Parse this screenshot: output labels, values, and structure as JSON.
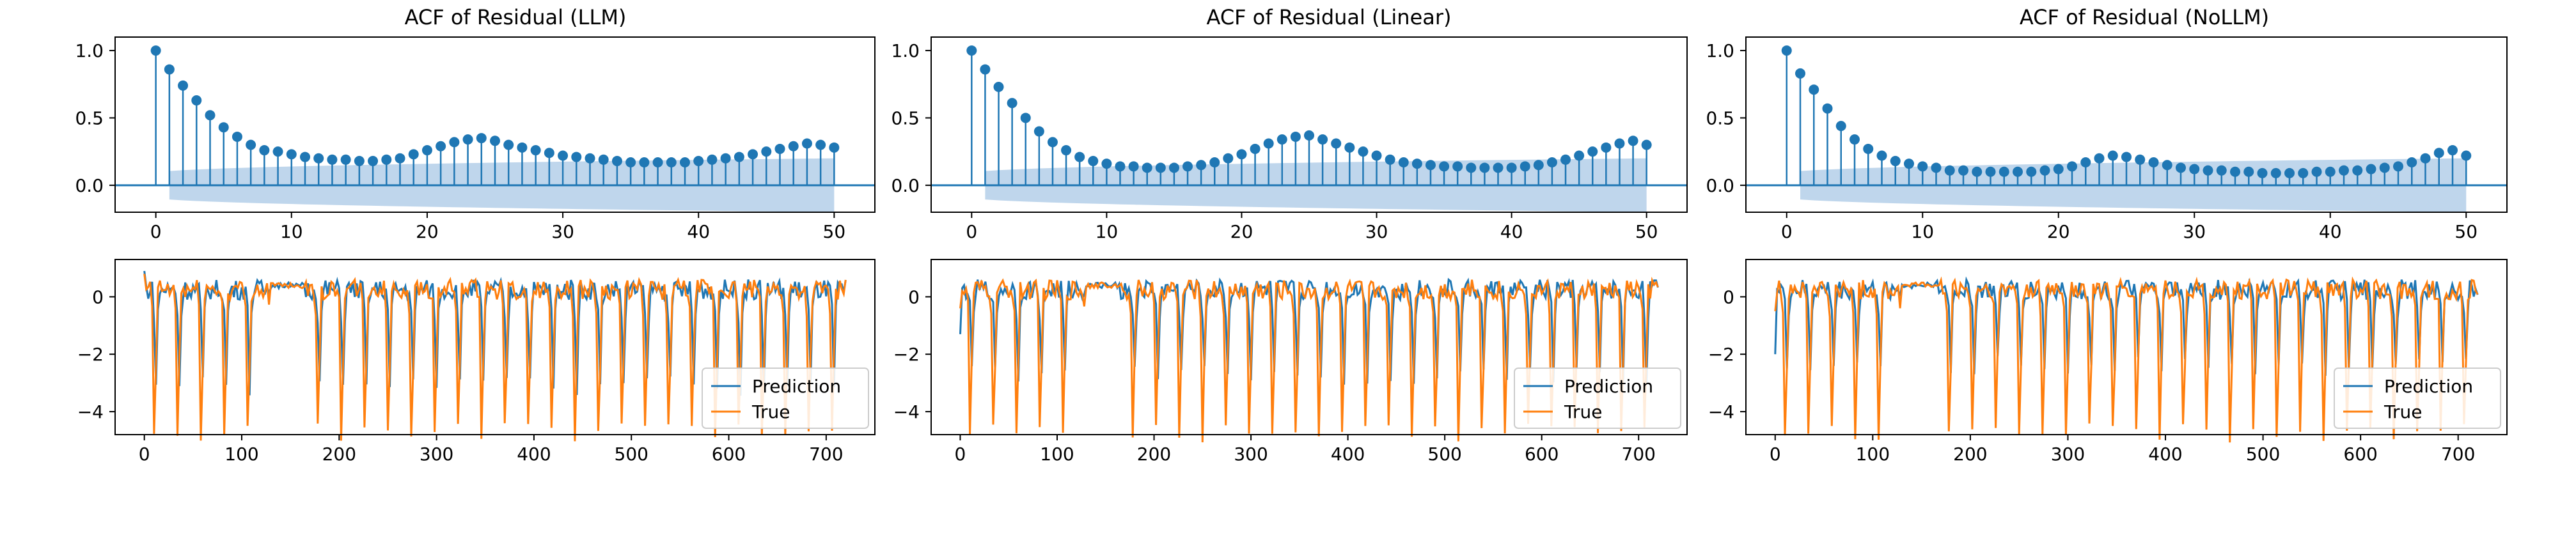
{
  "colors": {
    "acf": "#1f77b4",
    "band": "#a9c8e6",
    "prediction": "#1f77b4",
    "true": "#ff7f0e",
    "axis": "#000000"
  },
  "chart_data": [
    {
      "type": "stem",
      "title": "ACF of Residual (LLM)",
      "xlim": [
        -3,
        53
      ],
      "ylim": [
        -0.2,
        1.1
      ],
      "xticks": [
        0,
        10,
        20,
        30,
        40,
        50
      ],
      "yticks": [
        0.0,
        0.5,
        1.0
      ],
      "ytick_labels": [
        "0.0",
        "0.5",
        "1.0"
      ],
      "confidence_band": true,
      "lags": [
        0,
        1,
        2,
        3,
        4,
        5,
        6,
        7,
        8,
        9,
        10,
        11,
        12,
        13,
        14,
        15,
        16,
        17,
        18,
        19,
        20,
        21,
        22,
        23,
        24,
        25,
        26,
        27,
        28,
        29,
        30,
        31,
        32,
        33,
        34,
        35,
        36,
        37,
        38,
        39,
        40,
        41,
        42,
        43,
        44,
        45,
        46,
        47,
        48,
        49,
        50
      ],
      "values": [
        1.0,
        0.86,
        0.74,
        0.63,
        0.52,
        0.43,
        0.36,
        0.3,
        0.26,
        0.25,
        0.23,
        0.21,
        0.2,
        0.19,
        0.19,
        0.18,
        0.18,
        0.19,
        0.2,
        0.23,
        0.26,
        0.29,
        0.32,
        0.34,
        0.35,
        0.33,
        0.3,
        0.28,
        0.26,
        0.24,
        0.22,
        0.21,
        0.2,
        0.19,
        0.18,
        0.17,
        0.17,
        0.17,
        0.17,
        0.17,
        0.18,
        0.19,
        0.2,
        0.21,
        0.23,
        0.25,
        0.27,
        0.29,
        0.31,
        0.3,
        0.28
      ]
    },
    {
      "type": "stem",
      "title": "ACF of Residual (Linear)",
      "xlim": [
        -3,
        53
      ],
      "ylim": [
        -0.2,
        1.1
      ],
      "xticks": [
        0,
        10,
        20,
        30,
        40,
        50
      ],
      "yticks": [
        0.0,
        0.5,
        1.0
      ],
      "ytick_labels": [
        "0.0",
        "0.5",
        "1.0"
      ],
      "confidence_band": true,
      "lags": [
        0,
        1,
        2,
        3,
        4,
        5,
        6,
        7,
        8,
        9,
        10,
        11,
        12,
        13,
        14,
        15,
        16,
        17,
        18,
        19,
        20,
        21,
        22,
        23,
        24,
        25,
        26,
        27,
        28,
        29,
        30,
        31,
        32,
        33,
        34,
        35,
        36,
        37,
        38,
        39,
        40,
        41,
        42,
        43,
        44,
        45,
        46,
        47,
        48,
        49,
        50
      ],
      "values": [
        1.0,
        0.86,
        0.73,
        0.61,
        0.5,
        0.4,
        0.32,
        0.26,
        0.21,
        0.18,
        0.16,
        0.14,
        0.14,
        0.13,
        0.13,
        0.13,
        0.14,
        0.15,
        0.17,
        0.2,
        0.23,
        0.27,
        0.31,
        0.34,
        0.36,
        0.37,
        0.34,
        0.31,
        0.28,
        0.25,
        0.22,
        0.19,
        0.17,
        0.16,
        0.15,
        0.14,
        0.14,
        0.13,
        0.13,
        0.13,
        0.13,
        0.14,
        0.15,
        0.17,
        0.19,
        0.22,
        0.25,
        0.28,
        0.31,
        0.33,
        0.3
      ]
    },
    {
      "type": "stem",
      "title": "ACF of Residual (NoLLM)",
      "xlim": [
        -3,
        53
      ],
      "ylim": [
        -0.2,
        1.1
      ],
      "xticks": [
        0,
        10,
        20,
        30,
        40,
        50
      ],
      "yticks": [
        0.0,
        0.5,
        1.0
      ],
      "ytick_labels": [
        "0.0",
        "0.5",
        "1.0"
      ],
      "confidence_band": true,
      "lags": [
        0,
        1,
        2,
        3,
        4,
        5,
        6,
        7,
        8,
        9,
        10,
        11,
        12,
        13,
        14,
        15,
        16,
        17,
        18,
        19,
        20,
        21,
        22,
        23,
        24,
        25,
        26,
        27,
        28,
        29,
        30,
        31,
        32,
        33,
        34,
        35,
        36,
        37,
        38,
        39,
        40,
        41,
        42,
        43,
        44,
        45,
        46,
        47,
        48,
        49,
        50
      ],
      "values": [
        1.0,
        0.83,
        0.71,
        0.57,
        0.44,
        0.34,
        0.27,
        0.22,
        0.18,
        0.16,
        0.14,
        0.13,
        0.11,
        0.11,
        0.1,
        0.1,
        0.1,
        0.1,
        0.1,
        0.11,
        0.12,
        0.14,
        0.17,
        0.2,
        0.22,
        0.21,
        0.19,
        0.17,
        0.15,
        0.13,
        0.12,
        0.11,
        0.11,
        0.1,
        0.1,
        0.09,
        0.09,
        0.09,
        0.09,
        0.1,
        0.1,
        0.11,
        0.11,
        0.12,
        0.13,
        0.14,
        0.17,
        0.2,
        0.24,
        0.26,
        0.22
      ]
    },
    {
      "type": "line",
      "xlim": [
        -30,
        750
      ],
      "ylim": [
        -4.8,
        1.3
      ],
      "xticks": [
        0,
        100,
        200,
        300,
        400,
        500,
        600,
        700
      ],
      "yticks": [
        -4,
        -2,
        0
      ],
      "ytick_labels": [
        "−4",
        "−2",
        "0"
      ],
      "legend": "bottom-right",
      "series_meta": [
        {
          "name": "Prediction",
          "start": 0.9,
          "amp": 3.2,
          "ramp": 1.05,
          "phase": 0.0
        },
        {
          "name": "True",
          "start": 0.8,
          "amp": 3.9,
          "ramp": 1.4,
          "phase": 1.5
        }
      ],
      "period": 24,
      "length": 720
    },
    {
      "type": "line",
      "xlim": [
        -30,
        750
      ],
      "ylim": [
        -4.8,
        1.3
      ],
      "xticks": [
        0,
        100,
        200,
        300,
        400,
        500,
        600,
        700
      ],
      "yticks": [
        -4,
        -2,
        0
      ],
      "ytick_labels": [
        "−4",
        "−2",
        "0"
      ],
      "legend": "bottom-right",
      "series_meta": [
        {
          "name": "Prediction",
          "start": -1.3,
          "amp": 3.0,
          "ramp": 1.0,
          "phase": 0.0
        },
        {
          "name": "True",
          "start": -0.4,
          "amp": 3.9,
          "ramp": 1.4,
          "phase": 1.5
        }
      ],
      "period": 24,
      "length": 720
    },
    {
      "type": "line",
      "xlim": [
        -30,
        750
      ],
      "ylim": [
        -4.8,
        1.3
      ],
      "xticks": [
        0,
        100,
        200,
        300,
        400,
        500,
        600,
        700
      ],
      "yticks": [
        -4,
        -2,
        0
      ],
      "ytick_labels": [
        "−4",
        "−2",
        "0"
      ],
      "legend": "bottom-right",
      "series_meta": [
        {
          "name": "Prediction",
          "start": -2.0,
          "amp": 2.8,
          "ramp": 0.95,
          "phase": 0.0
        },
        {
          "name": "True",
          "start": -0.5,
          "amp": 3.9,
          "ramp": 1.4,
          "phase": 1.5
        }
      ],
      "period": 24,
      "length": 720
    }
  ]
}
